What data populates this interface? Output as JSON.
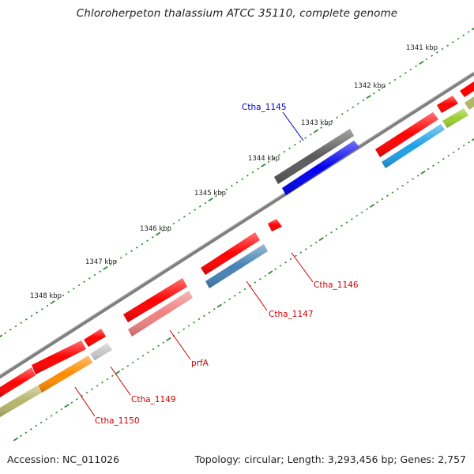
{
  "title": "Chloroherpeton thalassium ATCC 35110, complete genome",
  "footer": {
    "accession": "Accession: NC_011026",
    "stats": "Topology: circular; Length: 3,293,456 bp; Genes: 2,757"
  },
  "scale_labels": [
    "1341 kbp",
    "1342 kbp",
    "1343 kbp",
    "1344 kbp",
    "1345 kbp",
    "1346 kbp",
    "1347 kbp",
    "1348 kbp"
  ],
  "gene_labels": {
    "ctha_1145": "Ctha_1145",
    "ctha_1146": "Ctha_1146",
    "ctha_1147": "Ctha_1147",
    "prfa": "prfA",
    "ctha_1149": "Ctha_1149",
    "ctha_1150": "Ctha_1150"
  },
  "colors": {
    "backbone": "#808080",
    "tick": "#2e8b2e",
    "cds": "#ff0000",
    "highlight_label": "#0000cc",
    "gene_label": "#cc0000",
    "blue_feature": "#0000ee",
    "gray_feature": "#606060",
    "steel_feature": "#4682b4",
    "pink_feature": "#f08080",
    "olive_feature": "#b5b56a",
    "orange_feature": "#ff8c00",
    "sky_feature": "#1ea0e6",
    "lime_feature": "#9acd32"
  }
}
